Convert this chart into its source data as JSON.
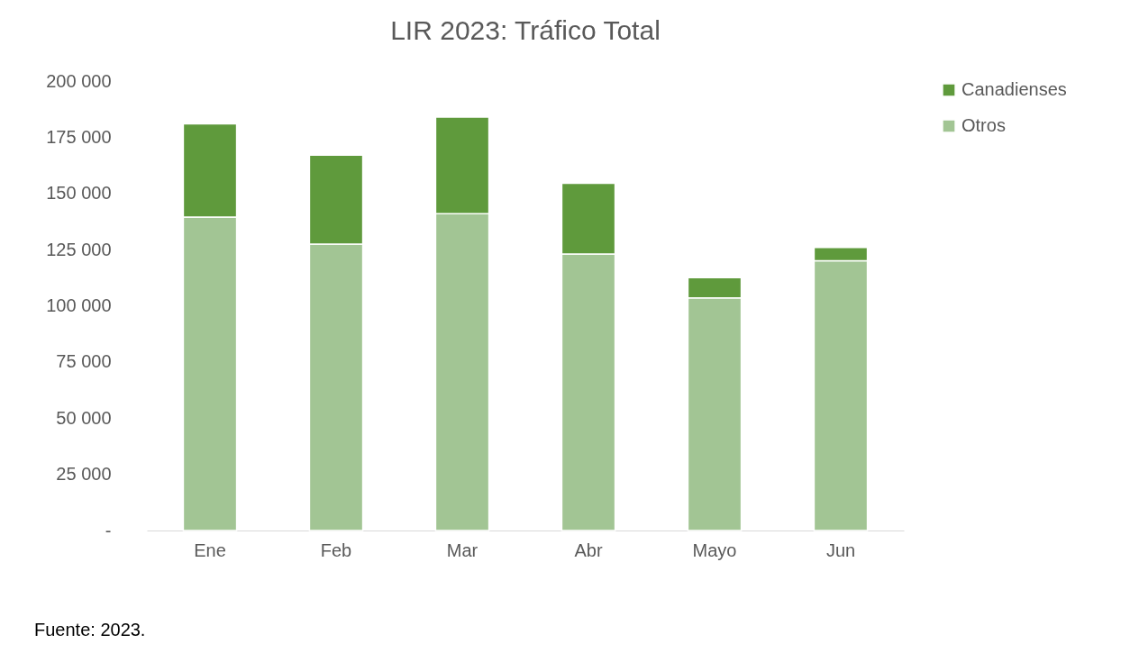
{
  "chart_data": {
    "type": "bar",
    "title": "LIR 2023: Tráfico Total",
    "categories": [
      "Ene",
      "Feb",
      "Mar",
      "Abr",
      "Mayo",
      "Jun"
    ],
    "series": [
      {
        "name": "Otros",
        "color": "#a2c594",
        "values": [
          139500,
          127500,
          141000,
          123000,
          103500,
          120000
        ]
      },
      {
        "name": "Canadienses",
        "color": "#5f9a3c",
        "values": [
          41500,
          39500,
          43000,
          31500,
          9000,
          6000
        ]
      }
    ],
    "stacked": true,
    "ylim": [
      0,
      200000
    ],
    "yticks": [
      {
        "value": 0,
        "label": "-"
      },
      {
        "value": 25000,
        "label": "25 000"
      },
      {
        "value": 50000,
        "label": "50 000"
      },
      {
        "value": 75000,
        "label": "75 000"
      },
      {
        "value": 100000,
        "label": "100 000"
      },
      {
        "value": 125000,
        "label": "125 000"
      },
      {
        "value": 150000,
        "label": "150 000"
      },
      {
        "value": 175000,
        "label": "175 000"
      },
      {
        "value": 200000,
        "label": "200 000"
      }
    ],
    "grid": false,
    "legend": "right",
    "annotations": [
      "Fuente: 2023."
    ]
  }
}
